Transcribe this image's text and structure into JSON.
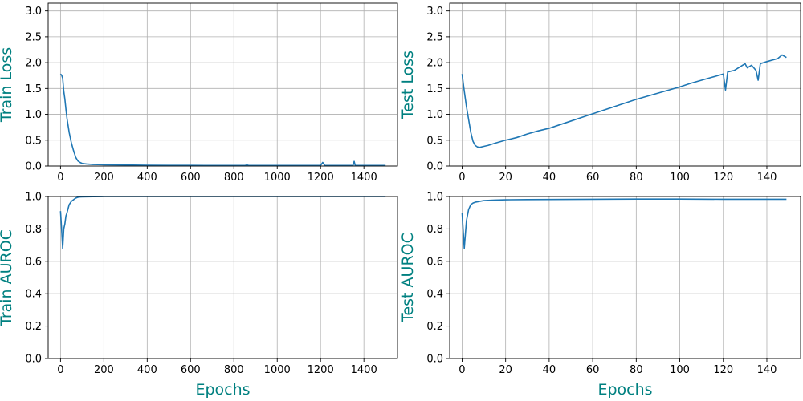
{
  "colors": {
    "line": "#1f77b4",
    "label": "#008080",
    "grid": "#b0b0b0",
    "axes": "#000000"
  },
  "chart_data": [
    {
      "type": "line",
      "title": "",
      "xlabel": "",
      "ylabel": "Train Loss",
      "xlim": [
        -57,
        1555
      ],
      "ylim": [
        0,
        3.15
      ],
      "xticks": [
        0,
        200,
        400,
        600,
        800,
        1000,
        1200,
        1400
      ],
      "yticks": [
        0.0,
        0.5,
        1.0,
        1.5,
        2.0,
        2.5,
        3.0
      ],
      "grid": true,
      "series": [
        {
          "x": [
            0,
            5,
            10,
            15,
            20,
            25,
            30,
            40,
            50,
            60,
            70,
            80,
            90,
            100,
            120,
            150,
            200,
            250,
            300,
            400,
            500,
            600,
            700,
            800,
            850,
            860,
            870,
            900,
            1000,
            1100,
            1190,
            1200,
            1210,
            1220,
            1300,
            1340,
            1350,
            1355,
            1360,
            1400,
            1500
          ],
          "y": [
            1.78,
            1.76,
            1.7,
            1.45,
            1.3,
            1.1,
            0.92,
            0.65,
            0.45,
            0.3,
            0.17,
            0.1,
            0.07,
            0.05,
            0.04,
            0.03,
            0.025,
            0.022,
            0.02,
            0.015,
            0.013,
            0.012,
            0.011,
            0.01,
            0.01,
            0.02,
            0.01,
            0.01,
            0.01,
            0.01,
            0.01,
            0.01,
            0.07,
            0.01,
            0.01,
            0.01,
            0.01,
            0.09,
            0.01,
            0.01,
            0.01
          ]
        }
      ]
    },
    {
      "type": "line",
      "title": "",
      "xlabel": "",
      "ylabel": "Test Loss",
      "xlim": [
        -5.7,
        155.5
      ],
      "ylim": [
        0,
        3.15
      ],
      "xticks": [
        0,
        20,
        40,
        60,
        80,
        100,
        120,
        140
      ],
      "yticks": [
        0.0,
        0.5,
        1.0,
        1.5,
        2.0,
        2.5,
        3.0
      ],
      "grid": true,
      "series": [
        {
          "x": [
            0,
            1,
            2,
            3,
            4,
            5,
            6,
            7,
            8,
            10,
            12,
            15,
            20,
            25,
            30,
            35,
            40,
            45,
            50,
            55,
            60,
            65,
            70,
            75,
            80,
            85,
            90,
            95,
            100,
            105,
            110,
            115,
            120,
            121,
            122,
            125,
            130,
            131,
            133,
            135,
            136,
            137,
            140,
            145,
            147,
            149
          ],
          "y": [
            1.78,
            1.45,
            1.15,
            0.9,
            0.65,
            0.48,
            0.4,
            0.37,
            0.36,
            0.38,
            0.4,
            0.44,
            0.5,
            0.55,
            0.62,
            0.68,
            0.73,
            0.8,
            0.87,
            0.94,
            1.01,
            1.08,
            1.15,
            1.22,
            1.29,
            1.35,
            1.41,
            1.47,
            1.53,
            1.6,
            1.66,
            1.72,
            1.78,
            1.47,
            1.82,
            1.85,
            1.98,
            1.9,
            1.95,
            1.85,
            1.66,
            1.98,
            2.02,
            2.08,
            2.15,
            2.1
          ]
        }
      ]
    },
    {
      "type": "line",
      "title": "",
      "xlabel": "Epochs",
      "ylabel": "Train AUROC",
      "xlim": [
        -57,
        1555
      ],
      "ylim": [
        0,
        1.0
      ],
      "xticks": [
        0,
        200,
        400,
        600,
        800,
        1000,
        1200,
        1400
      ],
      "yticks": [
        0.0,
        0.2,
        0.4,
        0.6,
        0.8,
        1.0
      ],
      "grid": true,
      "series": [
        {
          "x": [
            0,
            5,
            10,
            15,
            20,
            25,
            30,
            40,
            50,
            60,
            70,
            80,
            90,
            100,
            150,
            200,
            300,
            500,
            800,
            1000,
            1200,
            1400,
            1500
          ],
          "y": [
            0.91,
            0.8,
            0.68,
            0.8,
            0.83,
            0.88,
            0.9,
            0.95,
            0.97,
            0.98,
            0.99,
            0.995,
            0.997,
            0.998,
            0.999,
            1.0,
            1.0,
            1.0,
            1.0,
            1.0,
            1.0,
            1.0,
            1.0
          ]
        }
      ]
    },
    {
      "type": "line",
      "title": "",
      "xlabel": "Epochs",
      "ylabel": "Test AUROC",
      "xlim": [
        -5.7,
        155.5
      ],
      "ylim": [
        0,
        1.0
      ],
      "xticks": [
        0,
        20,
        40,
        60,
        80,
        100,
        120,
        140
      ],
      "yticks": [
        0.0,
        0.2,
        0.4,
        0.6,
        0.8,
        1.0
      ],
      "grid": true,
      "series": [
        {
          "x": [
            0,
            1,
            2,
            3,
            4,
            5,
            6,
            8,
            10,
            15,
            20,
            30,
            40,
            60,
            80,
            100,
            120,
            140,
            149
          ],
          "y": [
            0.9,
            0.68,
            0.85,
            0.92,
            0.95,
            0.96,
            0.965,
            0.97,
            0.975,
            0.978,
            0.98,
            0.981,
            0.982,
            0.983,
            0.984,
            0.984,
            0.983,
            0.983,
            0.983
          ]
        }
      ]
    }
  ]
}
